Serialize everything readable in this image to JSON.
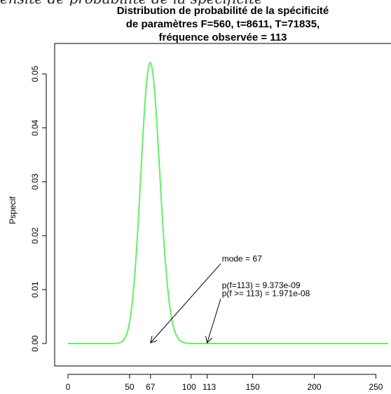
{
  "top_caption": "ensité de probabilité de la spécificité",
  "chart_data": {
    "type": "line",
    "title": [
      "Distribution de probabilité de la spécificité",
      "de paramètres F=560, t=8611, T=71835,",
      "fréquence observée = 113"
    ],
    "xlabel": "",
    "ylabel": "Pspecif",
    "xlim": [
      0,
      260
    ],
    "ylim": [
      0,
      0.052
    ],
    "x_ticks": [
      {
        "value": 0,
        "label": "0"
      },
      {
        "value": 50,
        "label": "50"
      },
      {
        "value": 67,
        "label": "67"
      },
      {
        "value": 100,
        "label": "100"
      },
      {
        "value": 113,
        "label": "113"
      },
      {
        "value": 150,
        "label": "150"
      },
      {
        "value": 200,
        "label": "200"
      },
      {
        "value": 250,
        "label": "250"
      }
    ],
    "y_ticks": [
      {
        "value": 0.0,
        "label": "0.00"
      },
      {
        "value": 0.01,
        "label": "0.01"
      },
      {
        "value": 0.02,
        "label": "0.02"
      },
      {
        "value": 0.03,
        "label": "0.03"
      },
      {
        "value": 0.04,
        "label": "0.04"
      },
      {
        "value": 0.05,
        "label": "0.05"
      }
    ],
    "series": [
      {
        "color": "#66ee66",
        "distribution": "hypergeometric",
        "params": {
          "F": 560,
          "t": 8611,
          "T": 71835
        },
        "x_range": [
          0,
          260
        ]
      }
    ],
    "annotations": [
      {
        "text": "mode = 67",
        "text_at": [
          125,
          0.0152
        ],
        "arrow_from": [
          124,
          0.0148
        ],
        "arrow_to": [
          67,
          0.0
        ]
      },
      {
        "text": "p(f=113) = 9.373e-09",
        "text_at": [
          125,
          0.0103
        ]
      },
      {
        "text": "p(f >= 113) = 1.971e-08",
        "text_at": [
          125,
          0.0088
        ],
        "arrow_from": [
          124,
          0.0083
        ],
        "arrow_to": [
          113,
          0.0
        ]
      }
    ]
  }
}
